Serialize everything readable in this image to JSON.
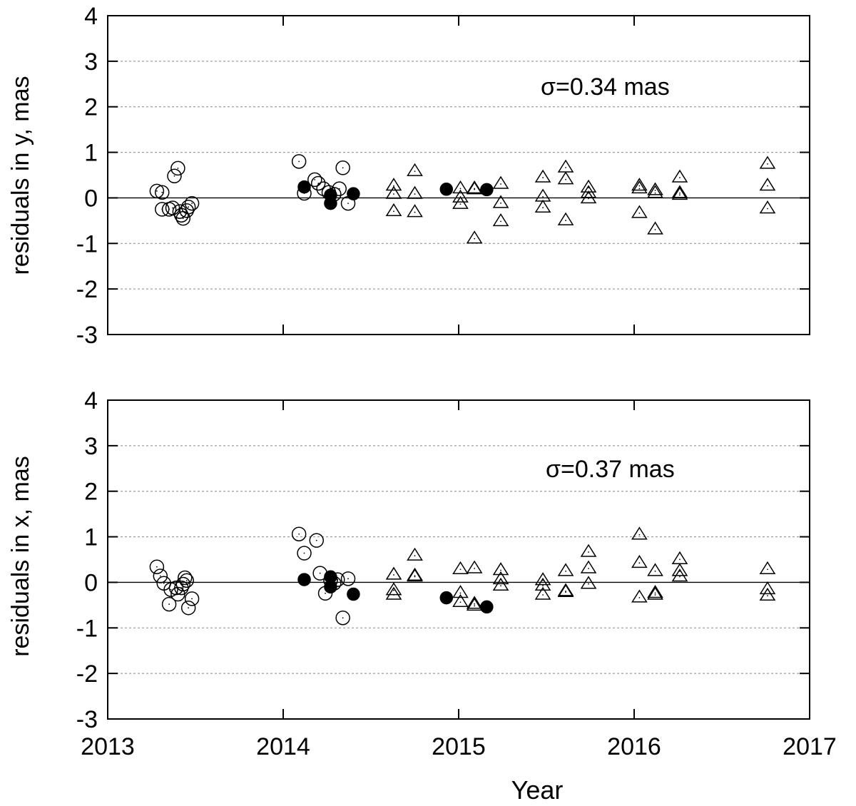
{
  "chart_data": [
    {
      "type": "scatter",
      "panel": "top",
      "ylabel": "residuals in y, mas",
      "xlabel": "",
      "annotation": "σ=0.34 mas",
      "xlim": [
        2013,
        2017
      ],
      "ylim": [
        -3,
        4
      ],
      "xticks": [
        "2013",
        "2014",
        "2015",
        "2016",
        "2017"
      ],
      "yticks": [
        "-3",
        "-2",
        "-1",
        "0",
        "1",
        "2",
        "3",
        "4"
      ],
      "grid": "horizontal dashed",
      "series": [
        {
          "name": "open circles",
          "marker": "open-circle",
          "points": [
            [
              2013.28,
              0.15
            ],
            [
              2013.31,
              0.12
            ],
            [
              2013.31,
              -0.25
            ],
            [
              2013.35,
              -0.25
            ],
            [
              2013.37,
              -0.22
            ],
            [
              2013.38,
              0.48
            ],
            [
              2013.4,
              0.65
            ],
            [
              2013.41,
              -0.3
            ],
            [
              2013.42,
              -0.38
            ],
            [
              2013.43,
              -0.45
            ],
            [
              2013.45,
              -0.28
            ],
            [
              2013.46,
              -0.2
            ],
            [
              2013.48,
              -0.12
            ],
            [
              2014.09,
              0.8
            ],
            [
              2014.12,
              0.1
            ],
            [
              2014.18,
              0.4
            ],
            [
              2014.2,
              0.32
            ],
            [
              2014.23,
              0.2
            ],
            [
              2014.26,
              0.12
            ],
            [
              2014.29,
              0.08
            ],
            [
              2014.32,
              0.2
            ],
            [
              2014.34,
              0.66
            ],
            [
              2014.37,
              -0.12
            ]
          ]
        },
        {
          "name": "filled circles",
          "marker": "filled-circle",
          "points": [
            [
              2014.12,
              0.24
            ],
            [
              2014.27,
              0.06
            ],
            [
              2014.27,
              -0.12
            ],
            [
              2014.4,
              0.09
            ],
            [
              2014.93,
              0.19
            ],
            [
              2015.16,
              0.18
            ]
          ]
        },
        {
          "name": "open triangles",
          "marker": "open-triangle",
          "points": [
            [
              2014.63,
              0.28
            ],
            [
              2014.63,
              0.1
            ],
            [
              2014.63,
              -0.28
            ],
            [
              2014.75,
              0.6
            ],
            [
              2014.75,
              0.1
            ],
            [
              2014.75,
              -0.3
            ],
            [
              2015.01,
              0.22
            ],
            [
              2015.01,
              0.02
            ],
            [
              2015.01,
              -0.12
            ],
            [
              2015.09,
              0.22
            ],
            [
              2015.09,
              0.2
            ],
            [
              2015.09,
              -0.88
            ],
            [
              2015.24,
              0.32
            ],
            [
              2015.24,
              -0.1
            ],
            [
              2015.24,
              -0.5
            ],
            [
              2015.48,
              0.46
            ],
            [
              2015.48,
              0.04
            ],
            [
              2015.48,
              -0.2
            ],
            [
              2015.61,
              0.68
            ],
            [
              2015.61,
              0.42
            ],
            [
              2015.61,
              -0.48
            ],
            [
              2015.74,
              0.24
            ],
            [
              2015.74,
              0.12
            ],
            [
              2015.74,
              0.0
            ],
            [
              2016.03,
              0.28
            ],
            [
              2016.03,
              0.22
            ],
            [
              2016.03,
              -0.32
            ],
            [
              2016.12,
              0.18
            ],
            [
              2016.12,
              0.12
            ],
            [
              2016.12,
              -0.68
            ],
            [
              2016.26,
              0.46
            ],
            [
              2016.26,
              0.12
            ],
            [
              2016.26,
              0.08
            ],
            [
              2016.76,
              0.76
            ],
            [
              2016.76,
              0.28
            ],
            [
              2016.76,
              -0.22
            ]
          ]
        }
      ]
    },
    {
      "type": "scatter",
      "panel": "bottom",
      "ylabel": "residuals in x, mas",
      "xlabel": "Year",
      "annotation": "σ=0.37 mas",
      "xlim": [
        2013,
        2017
      ],
      "ylim": [
        -3,
        4
      ],
      "xticks": [
        "2013",
        "2014",
        "2015",
        "2016",
        "2017"
      ],
      "yticks": [
        "-3",
        "-2",
        "-1",
        "0",
        "1",
        "2",
        "3",
        "4"
      ],
      "grid": "horizontal dashed",
      "series": [
        {
          "name": "open circles",
          "marker": "open-circle",
          "points": [
            [
              2013.28,
              0.34
            ],
            [
              2013.3,
              0.14
            ],
            [
              2013.32,
              -0.02
            ],
            [
              2013.35,
              -0.48
            ],
            [
              2013.36,
              -0.16
            ],
            [
              2013.39,
              -0.12
            ],
            [
              2013.4,
              -0.26
            ],
            [
              2013.42,
              -0.12
            ],
            [
              2013.43,
              -0.04
            ],
            [
              2013.44,
              0.1
            ],
            [
              2013.45,
              0.04
            ],
            [
              2013.46,
              -0.56
            ],
            [
              2013.48,
              -0.36
            ],
            [
              2014.09,
              1.06
            ],
            [
              2014.12,
              0.64
            ],
            [
              2014.19,
              0.92
            ],
            [
              2014.21,
              0.2
            ],
            [
              2014.24,
              -0.24
            ],
            [
              2014.27,
              0.04
            ],
            [
              2014.29,
              -0.02
            ],
            [
              2014.31,
              0.06
            ],
            [
              2014.34,
              -0.78
            ],
            [
              2014.37,
              0.08
            ]
          ]
        },
        {
          "name": "filled circles",
          "marker": "filled-circle",
          "points": [
            [
              2014.12,
              0.06
            ],
            [
              2014.27,
              0.12
            ],
            [
              2014.27,
              -0.1
            ],
            [
              2014.4,
              -0.26
            ],
            [
              2014.93,
              -0.34
            ],
            [
              2015.16,
              -0.54
            ]
          ]
        },
        {
          "name": "open triangles",
          "marker": "open-triangle",
          "points": [
            [
              2014.63,
              0.18
            ],
            [
              2014.63,
              -0.16
            ],
            [
              2014.63,
              -0.26
            ],
            [
              2014.75,
              0.6
            ],
            [
              2014.75,
              0.16
            ],
            [
              2014.75,
              0.14
            ],
            [
              2015.01,
              0.3
            ],
            [
              2015.01,
              -0.22
            ],
            [
              2015.01,
              -0.42
            ],
            [
              2015.09,
              0.32
            ],
            [
              2015.09,
              -0.46
            ],
            [
              2015.09,
              -0.5
            ],
            [
              2015.24,
              0.28
            ],
            [
              2015.24,
              0.08
            ],
            [
              2015.24,
              -0.06
            ],
            [
              2015.48,
              0.06
            ],
            [
              2015.48,
              -0.06
            ],
            [
              2015.48,
              -0.26
            ],
            [
              2015.61,
              0.26
            ],
            [
              2015.61,
              -0.18
            ],
            [
              2015.61,
              -0.2
            ],
            [
              2015.74,
              0.68
            ],
            [
              2015.74,
              0.32
            ],
            [
              2015.74,
              -0.02
            ],
            [
              2016.03,
              1.06
            ],
            [
              2016.03,
              0.44
            ],
            [
              2016.03,
              -0.32
            ],
            [
              2016.12,
              0.26
            ],
            [
              2016.12,
              -0.22
            ],
            [
              2016.12,
              -0.26
            ],
            [
              2016.26,
              0.52
            ],
            [
              2016.26,
              0.26
            ],
            [
              2016.26,
              0.14
            ],
            [
              2016.76,
              0.3
            ],
            [
              2016.76,
              -0.14
            ],
            [
              2016.76,
              -0.28
            ]
          ]
        }
      ]
    }
  ]
}
